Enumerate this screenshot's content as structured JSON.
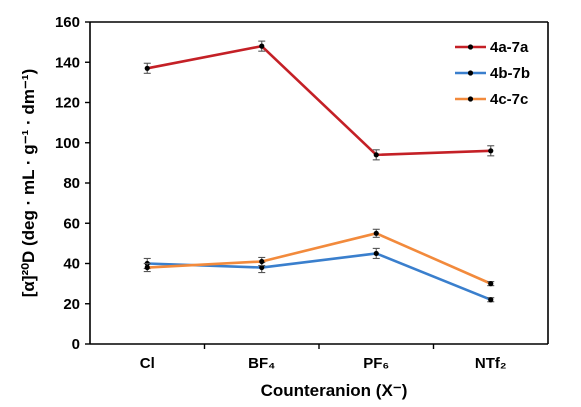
{
  "chart_data": {
    "type": "line",
    "categories": [
      "Cl",
      "BF₄",
      "PF₆",
      "NTf₂"
    ],
    "xlabel": "Counteranion (X⁻)",
    "ylabel": "[α]²⁰D (deg · mL · g⁻¹ · dm⁻¹)",
    "ylim": [
      0,
      160
    ],
    "yticks": [
      "0",
      "20",
      "40",
      "60",
      "80",
      "100",
      "120",
      "140",
      "160"
    ],
    "grid": false,
    "legend_position": "top-right",
    "series": [
      {
        "name": "4a-7a",
        "color": "#c42026",
        "values": [
          137,
          148,
          94,
          96
        ],
        "errors": [
          2.5,
          2.5,
          2.5,
          2.5
        ]
      },
      {
        "name": "4b-7b",
        "color": "#3a7fcd",
        "values": [
          40,
          38,
          45,
          22
        ],
        "errors": [
          2.5,
          2.5,
          2.5,
          1.0
        ]
      },
      {
        "name": "4c-7c",
        "color": "#f28a3c",
        "values": [
          38,
          41,
          55,
          30
        ],
        "errors": [
          2.0,
          2.0,
          2.0,
          1.0
        ]
      }
    ]
  }
}
